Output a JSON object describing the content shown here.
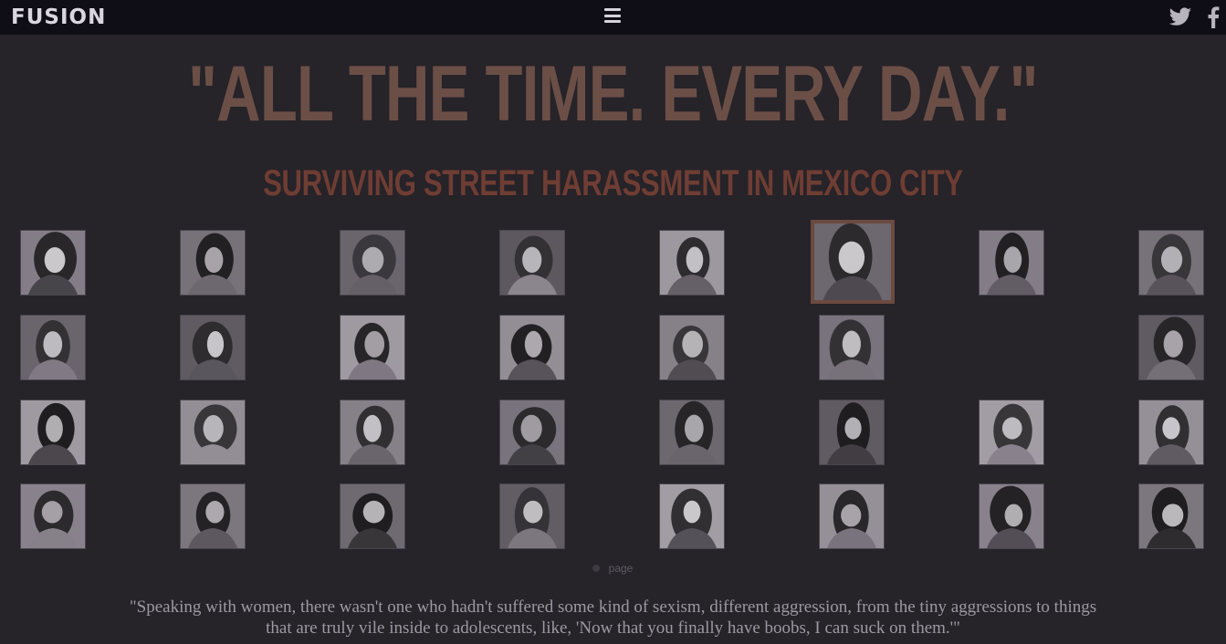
{
  "header": {
    "logo": "FUSION",
    "menu_icon": "hamburger-menu-icon",
    "social": [
      "twitter-icon",
      "facebook-icon"
    ]
  },
  "hero": {
    "title": "\"ALL THE TIME. EVERY DAY.\"",
    "subtitle": "SURVIVING STREET HARASSMENT IN MEXICO CITY"
  },
  "portraits": {
    "rows": 4,
    "columns": 8,
    "selected": {
      "row": 1,
      "column": 6
    }
  },
  "pager": {
    "label": "page"
  },
  "quote": {
    "line1": "\"Speaking with women, there wasn't one who hadn't suffered some kind of sexism, different aggression, from the tiny aggressions to things",
    "line2": "that are truly vile inside to adolescents, like, 'Now that you finally have boobs, I can suck on them.'\""
  },
  "colors": {
    "background": "#262329",
    "topbar": "#0f0e17",
    "headline": "#6b4f47",
    "subheadline": "#6e3d33",
    "selected_border": "#6b4a3f"
  }
}
